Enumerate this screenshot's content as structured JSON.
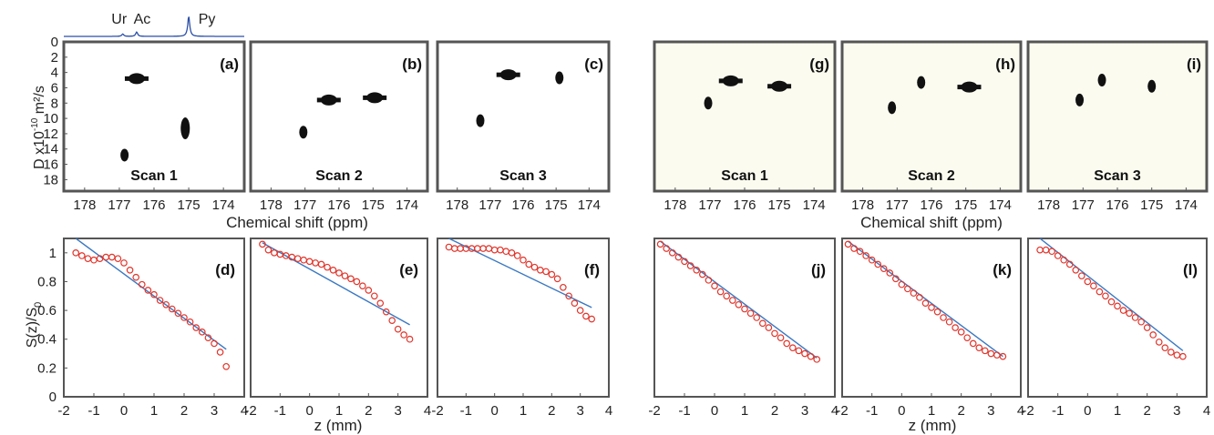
{
  "spectrum": {
    "peaks": [
      {
        "label": "Ur",
        "ppm": 176.9,
        "height": 0.12
      },
      {
        "label": "Ac",
        "ppm": 176.5,
        "height": 0.22
      },
      {
        "label": "Py",
        "ppm": 175.0,
        "height": 1.0
      }
    ]
  },
  "labels": {
    "dosy_ylabel": "D  x10",
    "dosy_ylabel_exp": "-10",
    "dosy_ylabel_units": " m²/s",
    "dosy_xlabel": "Chemical shift (ppm)",
    "decay_ylabel_main": "S(z)/S",
    "decay_ylabel_sub": "0",
    "decay_xlabel": "z (mm)"
  },
  "chart_data": [
    {
      "type": "scatter",
      "id": "a",
      "panel_label": "(a)",
      "scan_label": "Scan 1",
      "background": "#ffffff",
      "xlabel": "Chemical shift (ppm)",
      "ylabel": "D x10^-10 m²/s",
      "xlim": [
        178.6,
        173.4
      ],
      "ylim": [
        0,
        19.5
      ],
      "xticks": [
        178,
        177,
        176,
        175,
        174
      ],
      "yticks": [
        0,
        2,
        4,
        6,
        8,
        10,
        12,
        14,
        16,
        18
      ],
      "blobs": [
        {
          "ppm": 176.5,
          "D": 4.8,
          "shape": "diamond"
        },
        {
          "ppm": 175.1,
          "D": 11.3,
          "shape": "ellipse"
        },
        {
          "ppm": 176.85,
          "D": 14.8,
          "shape": "ellipse"
        }
      ]
    },
    {
      "type": "scatter",
      "id": "b",
      "panel_label": "(b)",
      "scan_label": "Scan 2",
      "background": "#ffffff",
      "xlim": [
        178.6,
        173.4
      ],
      "ylim": [
        0,
        19.5
      ],
      "xticks": [
        178,
        177,
        176,
        175,
        174
      ],
      "yticks": [
        0,
        2,
        4,
        6,
        8,
        10,
        12,
        14,
        16,
        18
      ],
      "blobs": [
        {
          "ppm": 176.3,
          "D": 7.6,
          "shape": "diamond"
        },
        {
          "ppm": 174.95,
          "D": 7.3,
          "shape": "diamond"
        },
        {
          "ppm": 177.05,
          "D": 11.8,
          "shape": "ellipse"
        }
      ]
    },
    {
      "type": "scatter",
      "id": "c",
      "panel_label": "(c)",
      "scan_label": "Scan 3",
      "background": "#ffffff",
      "xlim": [
        178.6,
        173.4
      ],
      "ylim": [
        0,
        19.5
      ],
      "xticks": [
        178,
        177,
        176,
        175,
        174
      ],
      "yticks": [
        0,
        2,
        4,
        6,
        8,
        10,
        12,
        14,
        16,
        18
      ],
      "blobs": [
        {
          "ppm": 176.45,
          "D": 4.3,
          "shape": "diamond"
        },
        {
          "ppm": 174.9,
          "D": 4.7,
          "shape": "ellipse"
        },
        {
          "ppm": 177.3,
          "D": 10.3,
          "shape": "ellipse"
        }
      ]
    },
    {
      "type": "scatter",
      "id": "g",
      "panel_label": "(g)",
      "scan_label": "Scan 1",
      "background": "#fbfbf0",
      "xlim": [
        178.6,
        173.4
      ],
      "ylim": [
        0,
        19.5
      ],
      "xticks": [
        178,
        177,
        176,
        175,
        174
      ],
      "blobs": [
        {
          "ppm": 176.4,
          "D": 5.1,
          "shape": "diamond"
        },
        {
          "ppm": 175.0,
          "D": 5.8,
          "shape": "diamond"
        },
        {
          "ppm": 177.05,
          "D": 8.0,
          "shape": "ellipse"
        }
      ]
    },
    {
      "type": "scatter",
      "id": "h",
      "panel_label": "(h)",
      "scan_label": "Scan 2",
      "background": "#fbfbf0",
      "xlim": [
        178.6,
        173.4
      ],
      "ylim": [
        0,
        19.5
      ],
      "xticks": [
        178,
        177,
        176,
        175,
        174
      ],
      "blobs": [
        {
          "ppm": 176.3,
          "D": 5.3,
          "shape": "ellipse"
        },
        {
          "ppm": 174.9,
          "D": 5.9,
          "shape": "diamond"
        },
        {
          "ppm": 177.15,
          "D": 8.6,
          "shape": "ellipse"
        }
      ]
    },
    {
      "type": "scatter",
      "id": "i",
      "panel_label": "(i)",
      "scan_label": "Scan 3",
      "background": "#fbfbf0",
      "xlim": [
        178.6,
        173.4
      ],
      "ylim": [
        0,
        19.5
      ],
      "xticks": [
        178,
        177,
        176,
        175,
        174
      ],
      "blobs": [
        {
          "ppm": 176.45,
          "D": 5.0,
          "shape": "ellipse"
        },
        {
          "ppm": 175.0,
          "D": 5.8,
          "shape": "ellipse"
        },
        {
          "ppm": 177.1,
          "D": 7.6,
          "shape": "ellipse"
        }
      ]
    },
    {
      "type": "line",
      "id": "d",
      "panel_label": "(d)",
      "xlabel": "z (mm)",
      "ylabel": "S(z)/S0",
      "xlim": [
        -2,
        4
      ],
      "ylim": [
        0,
        1.1
      ],
      "xticks": [
        -2,
        -1,
        0,
        1,
        2,
        3,
        4
      ],
      "yticks": [
        0,
        0.2,
        0.4,
        0.6,
        0.8,
        1
      ],
      "fit": {
        "x": [
          -1.6,
          3.4
        ],
        "y": [
          1.1,
          0.33
        ]
      },
      "x": [
        -1.6,
        -1.4,
        -1.2,
        -1.0,
        -0.8,
        -0.6,
        -0.4,
        -0.2,
        0.0,
        0.2,
        0.4,
        0.6,
        0.8,
        1.0,
        1.2,
        1.4,
        1.6,
        1.8,
        2.0,
        2.2,
        2.4,
        2.6,
        2.8,
        3.0,
        3.2,
        3.4
      ],
      "y": [
        1.0,
        0.98,
        0.96,
        0.95,
        0.96,
        0.97,
        0.97,
        0.96,
        0.93,
        0.88,
        0.83,
        0.78,
        0.74,
        0.71,
        0.67,
        0.64,
        0.61,
        0.58,
        0.55,
        0.52,
        0.48,
        0.45,
        0.41,
        0.37,
        0.31,
        0.21
      ]
    },
    {
      "type": "line",
      "id": "e",
      "panel_label": "(e)",
      "xlim": [
        -2,
        4
      ],
      "ylim": [
        0,
        1.1
      ],
      "xticks": [
        -2,
        -1,
        0,
        1,
        2,
        3,
        4
      ],
      "fit": {
        "x": [
          -1.6,
          3.4
        ],
        "y": [
          1.07,
          0.5
        ]
      },
      "x": [
        -1.6,
        -1.4,
        -1.2,
        -1.0,
        -0.8,
        -0.6,
        -0.4,
        -0.2,
        0.0,
        0.2,
        0.4,
        0.6,
        0.8,
        1.0,
        1.2,
        1.4,
        1.6,
        1.8,
        2.0,
        2.2,
        2.4,
        2.6,
        2.8,
        3.0,
        3.2,
        3.4
      ],
      "y": [
        1.06,
        1.02,
        1.0,
        0.99,
        0.98,
        0.97,
        0.96,
        0.95,
        0.94,
        0.93,
        0.92,
        0.9,
        0.88,
        0.86,
        0.84,
        0.82,
        0.8,
        0.77,
        0.74,
        0.7,
        0.65,
        0.59,
        0.53,
        0.47,
        0.43,
        0.4
      ]
    },
    {
      "type": "line",
      "id": "f",
      "panel_label": "(f)",
      "xlim": [
        -2,
        4
      ],
      "ylim": [
        0,
        1.1
      ],
      "xticks": [
        -2,
        -1,
        0,
        1,
        2,
        3,
        4
      ],
      "fit": {
        "x": [
          -1.6,
          3.4
        ],
        "y": [
          1.1,
          0.62
        ]
      },
      "x": [
        -1.6,
        -1.4,
        -1.2,
        -1.0,
        -0.8,
        -0.6,
        -0.4,
        -0.2,
        0.0,
        0.2,
        0.4,
        0.6,
        0.8,
        1.0,
        1.2,
        1.4,
        1.6,
        1.8,
        2.0,
        2.2,
        2.4,
        2.6,
        2.8,
        3.0,
        3.2,
        3.4
      ],
      "y": [
        1.04,
        1.03,
        1.03,
        1.03,
        1.03,
        1.03,
        1.03,
        1.03,
        1.02,
        1.02,
        1.01,
        1.0,
        0.98,
        0.95,
        0.92,
        0.9,
        0.88,
        0.87,
        0.85,
        0.82,
        0.76,
        0.7,
        0.65,
        0.6,
        0.56,
        0.54
      ]
    },
    {
      "type": "line",
      "id": "j",
      "panel_label": "(j)",
      "xlim": [
        -2,
        4
      ],
      "ylim": [
        0,
        1.1
      ],
      "xticks": [
        -2,
        -1,
        0,
        1,
        2,
        3,
        4
      ],
      "fit": {
        "x": [
          -1.8,
          3.4
        ],
        "y": [
          1.08,
          0.27
        ]
      },
      "x": [
        -1.8,
        -1.6,
        -1.4,
        -1.2,
        -1.0,
        -0.8,
        -0.6,
        -0.4,
        -0.2,
        0.0,
        0.2,
        0.4,
        0.6,
        0.8,
        1.0,
        1.2,
        1.4,
        1.6,
        1.8,
        2.0,
        2.2,
        2.4,
        2.6,
        2.8,
        3.0,
        3.2,
        3.4
      ],
      "y": [
        1.06,
        1.03,
        1.0,
        0.97,
        0.94,
        0.91,
        0.88,
        0.85,
        0.81,
        0.77,
        0.73,
        0.7,
        0.67,
        0.64,
        0.61,
        0.58,
        0.55,
        0.51,
        0.48,
        0.44,
        0.41,
        0.37,
        0.34,
        0.32,
        0.3,
        0.28,
        0.26
      ]
    },
    {
      "type": "line",
      "id": "k",
      "panel_label": "(k)",
      "xlim": [
        -2,
        4
      ],
      "ylim": [
        0,
        1.1
      ],
      "xticks": [
        -2,
        -1,
        0,
        1,
        2,
        3,
        4
      ],
      "fit": {
        "x": [
          -1.8,
          3.4
        ],
        "y": [
          1.08,
          0.28
        ]
      },
      "x": [
        -1.8,
        -1.6,
        -1.4,
        -1.2,
        -1.0,
        -0.8,
        -0.6,
        -0.4,
        -0.2,
        0.0,
        0.2,
        0.4,
        0.6,
        0.8,
        1.0,
        1.2,
        1.4,
        1.6,
        1.8,
        2.0,
        2.2,
        2.4,
        2.6,
        2.8,
        3.0,
        3.2,
        3.4
      ],
      "y": [
        1.06,
        1.03,
        1.01,
        0.98,
        0.95,
        0.92,
        0.89,
        0.86,
        0.82,
        0.78,
        0.75,
        0.72,
        0.69,
        0.65,
        0.62,
        0.59,
        0.55,
        0.52,
        0.48,
        0.45,
        0.41,
        0.37,
        0.34,
        0.32,
        0.3,
        0.29,
        0.28
      ]
    },
    {
      "type": "line",
      "id": "l",
      "panel_label": "(l)",
      "xlim": [
        -2,
        4
      ],
      "ylim": [
        0,
        1.1
      ],
      "xticks": [
        -2,
        -1,
        0,
        1,
        2,
        3,
        4
      ],
      "fit": {
        "x": [
          -1.6,
          3.2
        ],
        "y": [
          1.1,
          0.32
        ]
      },
      "x": [
        -1.6,
        -1.4,
        -1.2,
        -1.0,
        -0.8,
        -0.6,
        -0.4,
        -0.2,
        0.0,
        0.2,
        0.4,
        0.6,
        0.8,
        1.0,
        1.2,
        1.4,
        1.6,
        1.8,
        2.0,
        2.2,
        2.4,
        2.6,
        2.8,
        3.0,
        3.2
      ],
      "y": [
        1.02,
        1.02,
        1.01,
        0.98,
        0.95,
        0.92,
        0.88,
        0.84,
        0.8,
        0.77,
        0.73,
        0.7,
        0.66,
        0.63,
        0.6,
        0.58,
        0.55,
        0.52,
        0.48,
        0.43,
        0.38,
        0.34,
        0.31,
        0.29,
        0.28
      ]
    }
  ]
}
